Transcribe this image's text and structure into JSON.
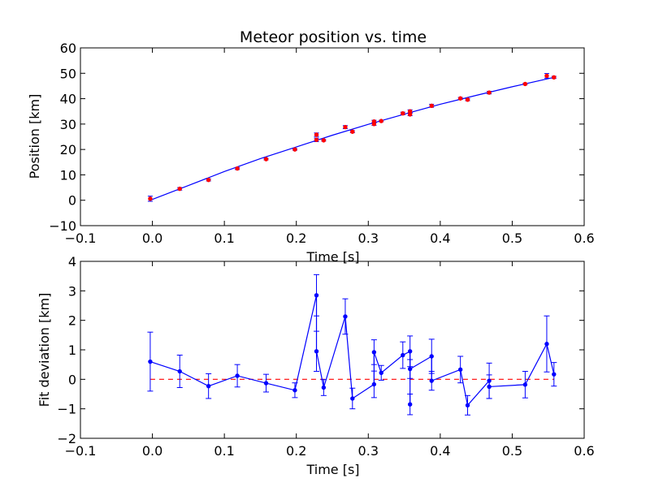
{
  "chart_data": [
    {
      "type": "scatter",
      "title": "Meteor position vs. time",
      "xlabel": "Time [s]",
      "ylabel": "Position [km]",
      "xlim": [
        -0.1,
        0.6
      ],
      "ylim": [
        -10,
        60
      ],
      "xticks": [
        -0.1,
        0.0,
        0.1,
        0.2,
        0.3,
        0.4,
        0.5,
        0.6
      ],
      "xtick_labels": [
        "−0.1",
        "0.0",
        "0.1",
        "0.2",
        "0.3",
        "0.4",
        "0.5",
        "0.6"
      ],
      "yticks": [
        -10,
        0,
        10,
        20,
        30,
        40,
        50,
        60
      ],
      "ytick_labels": [
        "−10",
        "0",
        "10",
        "20",
        "30",
        "40",
        "50",
        "60"
      ],
      "grid": false,
      "series": [
        {
          "marker_color": "#ff0000",
          "errorbar_color": "#0000ff",
          "points": [
            {
              "x": -0.003,
              "y": 0.6,
              "err": 1.0
            },
            {
              "x": 0.038,
              "y": 4.5,
              "err": 0.5
            },
            {
              "x": 0.078,
              "y": 8.0,
              "err": 0.4
            },
            {
              "x": 0.118,
              "y": 12.5,
              "err": 0.4
            },
            {
              "x": 0.158,
              "y": 16.2,
              "err": 0.3
            },
            {
              "x": 0.198,
              "y": 20.0,
              "err": 0.3
            },
            {
              "x": 0.228,
              "y": 25.8,
              "err": 0.7
            },
            {
              "x": 0.228,
              "y": 23.8,
              "err": 0.7
            },
            {
              "x": 0.238,
              "y": 23.6,
              "err": 0.3
            },
            {
              "x": 0.268,
              "y": 28.8,
              "err": 0.6
            },
            {
              "x": 0.278,
              "y": 27.0,
              "err": 0.4
            },
            {
              "x": 0.308,
              "y": 31.0,
              "err": 0.5
            },
            {
              "x": 0.308,
              "y": 30.0,
              "err": 0.5
            },
            {
              "x": 0.318,
              "y": 31.2,
              "err": 0.3
            },
            {
              "x": 0.348,
              "y": 34.2,
              "err": 0.5
            },
            {
              "x": 0.358,
              "y": 35.0,
              "err": 0.6
            },
            {
              "x": 0.358,
              "y": 33.8,
              "err": 0.5
            },
            {
              "x": 0.388,
              "y": 37.2,
              "err": 0.6
            },
            {
              "x": 0.428,
              "y": 40.1,
              "err": 0.4
            },
            {
              "x": 0.438,
              "y": 39.6,
              "err": 0.4
            },
            {
              "x": 0.468,
              "y": 42.4,
              "err": 0.5
            },
            {
              "x": 0.518,
              "y": 45.8,
              "err": 0.3
            },
            {
              "x": 0.548,
              "y": 49.0,
              "err": 0.9
            },
            {
              "x": 0.558,
              "y": 48.4,
              "err": 0.4
            }
          ]
        },
        {
          "style": "line",
          "color": "#0000ff",
          "x": [
            -0.003,
            0.05,
            0.1,
            0.15,
            0.2,
            0.25,
            0.3,
            0.35,
            0.4,
            0.45,
            0.5,
            0.558
          ],
          "values": [
            0,
            5.8,
            11.3,
            16.4,
            21.0,
            25.6,
            29.9,
            33.9,
            37.8,
            41.3,
            44.7,
            48.4
          ]
        }
      ]
    },
    {
      "type": "line",
      "title": "",
      "xlabel": "Time [s]",
      "ylabel": "Fit deviation [km]",
      "xlim": [
        -0.1,
        0.6
      ],
      "ylim": [
        -2,
        4
      ],
      "xticks": [
        -0.1,
        0.0,
        0.1,
        0.2,
        0.3,
        0.4,
        0.5,
        0.6
      ],
      "xtick_labels": [
        "−0.1",
        "0.0",
        "0.1",
        "0.2",
        "0.3",
        "0.4",
        "0.5",
        "0.6"
      ],
      "yticks": [
        -2,
        -1,
        0,
        1,
        2,
        3,
        4
      ],
      "ytick_labels": [
        "−2",
        "−1",
        "0",
        "1",
        "2",
        "3",
        "4"
      ],
      "grid": false,
      "series": [
        {
          "color": "#0000ff",
          "points": [
            {
              "x": -0.003,
              "y": 0.6,
              "err": 1.0
            },
            {
              "x": 0.038,
              "y": 0.27,
              "err": 0.55
            },
            {
              "x": 0.078,
              "y": -0.23,
              "err": 0.42
            },
            {
              "x": 0.118,
              "y": 0.12,
              "err": 0.38
            },
            {
              "x": 0.158,
              "y": -0.13,
              "err": 0.3
            },
            {
              "x": 0.198,
              "y": -0.37,
              "err": 0.25
            },
            {
              "x": 0.228,
              "y": 2.85,
              "err": 0.7
            },
            {
              "x": 0.228,
              "y": 0.95,
              "err": 0.68
            },
            {
              "x": 0.238,
              "y": -0.28,
              "err": 0.27
            },
            {
              "x": 0.268,
              "y": 2.13,
              "err": 0.6
            },
            {
              "x": 0.278,
              "y": -0.65,
              "err": 0.35
            },
            {
              "x": 0.308,
              "y": -0.17,
              "err": 0.45
            },
            {
              "x": 0.308,
              "y": 0.92,
              "err": 0.42
            },
            {
              "x": 0.318,
              "y": 0.22,
              "err": 0.25
            },
            {
              "x": 0.348,
              "y": 0.82,
              "err": 0.45
            },
            {
              "x": 0.358,
              "y": 0.95,
              "err": 0.52
            },
            {
              "x": 0.358,
              "y": -0.85,
              "err": 0.35
            },
            {
              "x": 0.358,
              "y": 0.35,
              "err": 0.32
            },
            {
              "x": 0.388,
              "y": 0.78,
              "err": 0.58
            },
            {
              "x": 0.388,
              "y": -0.05,
              "err": 0.32
            },
            {
              "x": 0.428,
              "y": 0.33,
              "err": 0.45
            },
            {
              "x": 0.438,
              "y": -0.88,
              "err": 0.33
            },
            {
              "x": 0.468,
              "y": -0.05,
              "err": 0.6
            },
            {
              "x": 0.468,
              "y": -0.25,
              "err": 0.4
            },
            {
              "x": 0.518,
              "y": -0.18,
              "err": 0.45
            },
            {
              "x": 0.548,
              "y": 1.2,
              "err": 0.95
            },
            {
              "x": 0.558,
              "y": 0.17,
              "err": 0.4
            }
          ]
        },
        {
          "style": "dashed",
          "color": "#ff0000",
          "x": [
            -0.003,
            0.558
          ],
          "values": [
            0,
            0
          ]
        }
      ]
    }
  ]
}
